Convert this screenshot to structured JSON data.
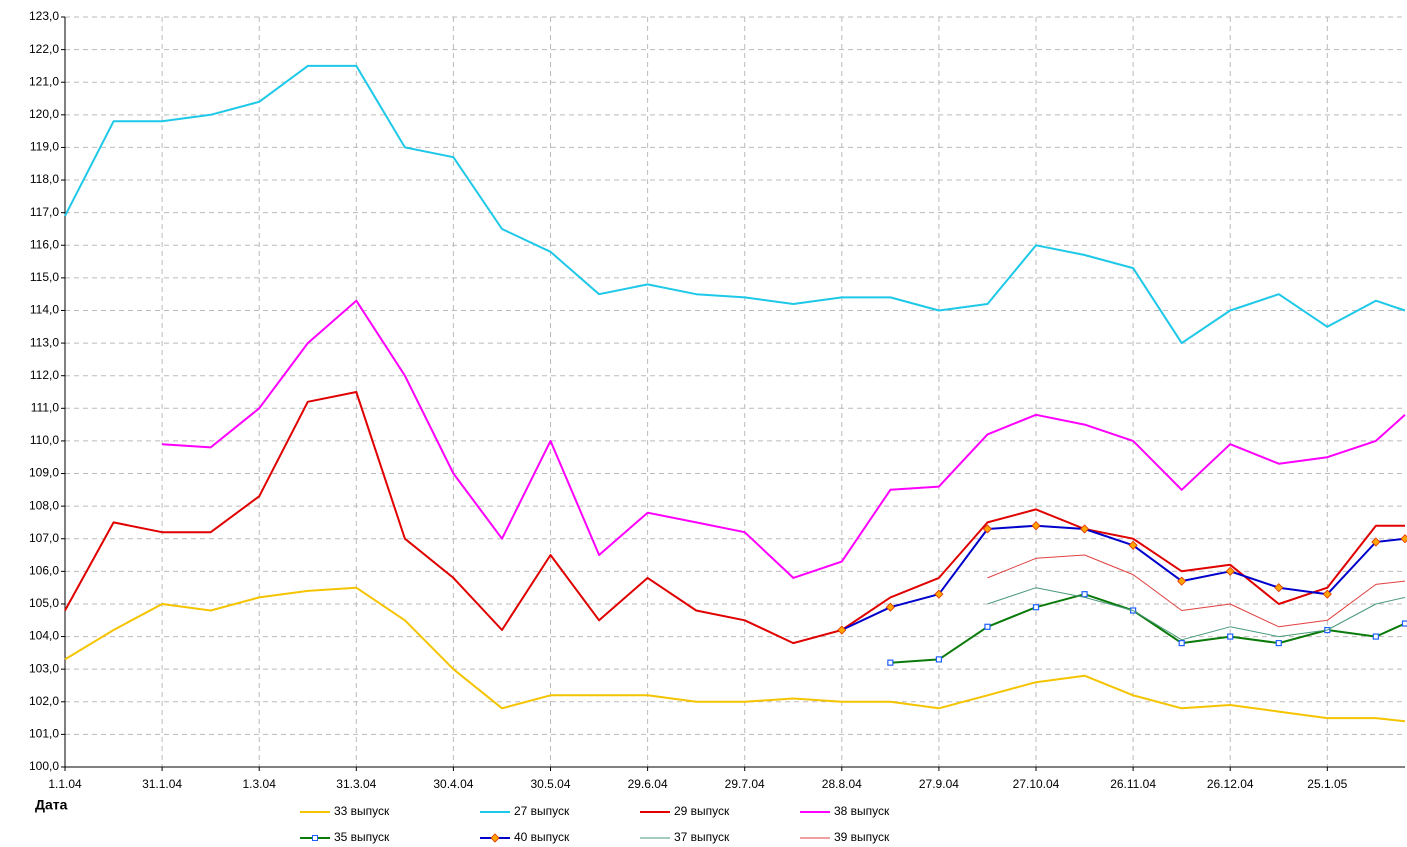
{
  "chart_data": {
    "type": "line",
    "xlabel": "Дата",
    "x": [
      "1.1.04",
      "16.1.04",
      "31.1.04",
      "15.2.04",
      "1.3.04",
      "16.3.04",
      "31.3.04",
      "15.4.04",
      "30.4.04",
      "15.5.04",
      "30.5.04",
      "14.6.04",
      "29.6.04",
      "14.7.04",
      "29.7.04",
      "13.8.04",
      "28.8.04",
      "12.9.04",
      "27.9.04",
      "12.10.04",
      "27.10.04",
      "11.11.04",
      "26.11.04",
      "11.12.04",
      "26.12.04",
      "10.1.05",
      "25.1.05",
      "9.2.05",
      "18.2.05"
    ],
    "xlim": [
      "1.1.04",
      "18.2.05"
    ],
    "xticks": [
      "1.1.04",
      "31.1.04",
      "1.3.04",
      "31.3.04",
      "30.4.04",
      "30.5.04",
      "29.6.04",
      "29.7.04",
      "28.8.04",
      "27.9.04",
      "27.10.04",
      "26.11.04",
      "26.12.04",
      "25.1.05"
    ],
    "ylim": [
      100,
      123
    ],
    "yticks": [
      {
        "value": 100,
        "label": "100,0"
      },
      {
        "value": 101,
        "label": "101,0"
      },
      {
        "value": 102,
        "label": "102,0"
      },
      {
        "value": 103,
        "label": "103,0"
      },
      {
        "value": 104,
        "label": "104,0"
      },
      {
        "value": 105,
        "label": "105,0"
      },
      {
        "value": 106,
        "label": "106,0"
      },
      {
        "value": 107,
        "label": "107,0"
      },
      {
        "value": 108,
        "label": "108,0"
      },
      {
        "value": 109,
        "label": "109,0"
      },
      {
        "value": 110,
        "label": "110,0"
      },
      {
        "value": 111,
        "label": "111,0"
      },
      {
        "value": 112,
        "label": "112,0"
      },
      {
        "value": 113,
        "label": "113,0"
      },
      {
        "value": 114,
        "label": "114,0"
      },
      {
        "value": 115,
        "label": "115,0"
      },
      {
        "value": 116,
        "label": "116,0"
      },
      {
        "value": 117,
        "label": "117,0"
      },
      {
        "value": 118,
        "label": "118,0"
      },
      {
        "value": 119,
        "label": "119,0"
      },
      {
        "value": 120,
        "label": "120,0"
      },
      {
        "value": 121,
        "label": "121,0"
      },
      {
        "value": 122,
        "label": "122,0"
      },
      {
        "value": 123,
        "label": "123,0"
      }
    ],
    "grid": true,
    "legend": "bottom",
    "series": [
      {
        "name": "33 выпуск",
        "color": "#f5c400",
        "width": 2,
        "values": [
          103.3,
          104.2,
          105.0,
          104.8,
          105.2,
          105.4,
          105.5,
          104.5,
          103.0,
          101.8,
          102.2,
          102.2,
          102.2,
          102.0,
          102.0,
          102.1,
          102.0,
          102.0,
          101.8,
          102.2,
          102.6,
          102.8,
          102.2,
          101.8,
          101.9,
          101.7,
          101.5,
          101.5,
          101.4
        ]
      },
      {
        "name": "27 выпуск",
        "color": "#1ec8e8",
        "width": 2,
        "values": [
          116.9,
          119.8,
          119.8,
          120.0,
          120.4,
          121.5,
          121.5,
          119.0,
          118.7,
          116.5,
          115.8,
          114.5,
          114.8,
          114.5,
          114.4,
          114.2,
          114.4,
          114.4,
          114.0,
          114.2,
          116.0,
          115.7,
          115.3,
          113.0,
          114.0,
          114.5,
          113.5,
          114.3,
          114.0
        ]
      },
      {
        "name": "29 выпуск",
        "color": "#e00000",
        "width": 2,
        "values": [
          104.8,
          107.5,
          107.2,
          107.2,
          108.3,
          111.2,
          111.5,
          107.0,
          105.8,
          104.2,
          106.5,
          104.5,
          105.8,
          104.8,
          104.5,
          103.8,
          104.2,
          105.2,
          105.8,
          107.5,
          107.9,
          107.3,
          107.0,
          106.0,
          106.2,
          105.0,
          105.5,
          107.4,
          107.4
        ]
      },
      {
        "name": "38 выпуск",
        "color": "#ff00ff",
        "width": 2,
        "values": [
          null,
          null,
          109.9,
          109.8,
          111.0,
          113.0,
          114.3,
          112.0,
          109.0,
          107.0,
          110.0,
          106.5,
          107.8,
          107.5,
          107.2,
          105.8,
          106.3,
          108.5,
          108.6,
          110.2,
          110.8,
          110.5,
          110.0,
          108.5,
          109.9,
          109.3,
          109.5,
          110.0,
          110.8
        ]
      },
      {
        "name": "35 выпуск",
        "color": "#0a7a0a",
        "width": 2,
        "marker": "square",
        "marker_color": "#1f5fff",
        "values": [
          null,
          null,
          null,
          null,
          null,
          null,
          null,
          null,
          null,
          null,
          null,
          null,
          null,
          null,
          null,
          null,
          null,
          103.2,
          103.3,
          104.3,
          104.9,
          105.3,
          104.8,
          103.8,
          104.0,
          103.8,
          104.2,
          104.0,
          104.4
        ]
      },
      {
        "name": "40 выпуск",
        "color": "#0000cc",
        "width": 2,
        "marker": "diamond",
        "marker_color": "#ffa500",
        "values": [
          null,
          null,
          null,
          null,
          null,
          null,
          null,
          null,
          null,
          null,
          null,
          null,
          null,
          null,
          null,
          null,
          104.2,
          104.9,
          105.3,
          107.3,
          107.4,
          107.3,
          106.8,
          105.7,
          106.0,
          105.5,
          105.3,
          106.9,
          107.0
        ]
      },
      {
        "name": "37 выпуск",
        "color": "#4a9a7a",
        "width": 1,
        "values": [
          null,
          null,
          null,
          null,
          null,
          null,
          null,
          null,
          null,
          null,
          null,
          null,
          null,
          null,
          null,
          null,
          null,
          null,
          null,
          105.0,
          105.5,
          105.2,
          104.8,
          103.9,
          104.3,
          104.0,
          104.2,
          105.0,
          105.2
        ]
      },
      {
        "name": "39 выпуск",
        "color": "#e04040",
        "width": 1,
        "values": [
          null,
          null,
          null,
          null,
          null,
          null,
          null,
          null,
          null,
          null,
          null,
          null,
          null,
          null,
          null,
          null,
          null,
          null,
          null,
          105.8,
          106.4,
          106.5,
          105.9,
          104.8,
          105.0,
          104.3,
          104.5,
          105.6,
          105.7
        ]
      }
    ]
  }
}
